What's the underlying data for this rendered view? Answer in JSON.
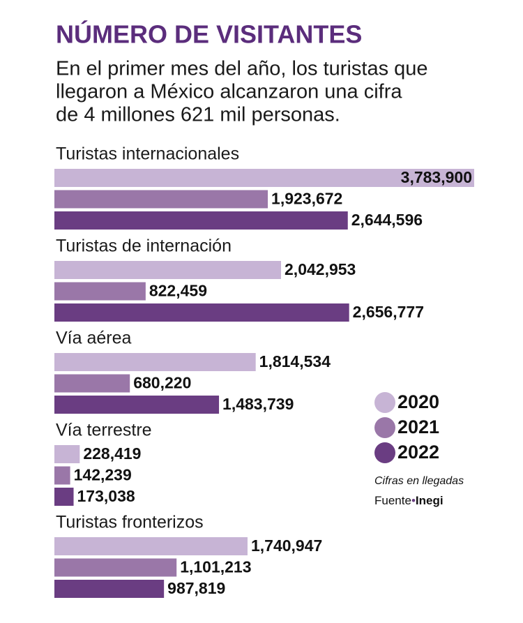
{
  "chart_data": {
    "type": "bar",
    "orientation": "horizontal",
    "title": "NÚMERO DE VISITANTES",
    "subtitle": [
      "En el primer mes del año, los turistas que",
      "llegaron a México alcanzaron una cifra",
      "de 4 millones 621 mil personas."
    ],
    "categories": [
      "Turistas internacionales",
      "Turistas de internación",
      "Vía aérea",
      "Vía terrestre",
      "Turistas fronterizos"
    ],
    "series": [
      {
        "name": "2020",
        "color": "#c7b4d5",
        "values": [
          3783900,
          2042953,
          1814534,
          228419,
          1740947
        ],
        "value_labels": [
          "3,783,900",
          "2,042,953",
          "1,814,534",
          "228,419",
          "1,740,947"
        ]
      },
      {
        "name": "2021",
        "color": "#9a77a8",
        "values": [
          1923672,
          822459,
          680220,
          142239,
          1101213
        ],
        "value_labels": [
          "1,923,672",
          "822,459",
          "680,220",
          "142,239",
          "1,101,213"
        ]
      },
      {
        "name": "2022",
        "color": "#6a3d82",
        "values": [
          2644596,
          2656777,
          1483739,
          173038,
          987819
        ],
        "value_labels": [
          "2,644,596",
          "2,656,777",
          "1,483,739",
          "173,038",
          "987,819"
        ]
      }
    ],
    "note": "Cifras en llegadas",
    "source_label": "Fuente",
    "source": "Inegi",
    "legend": "right"
  }
}
